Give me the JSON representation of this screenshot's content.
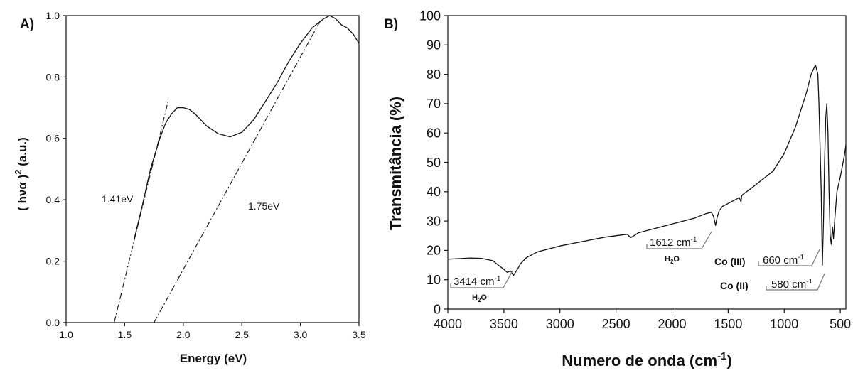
{
  "chart_data": [
    {
      "panel_label": "A)",
      "type": "line",
      "title": "",
      "xlabel": "Energy (eV)",
      "ylabel_base": "( hνα )",
      "ylabel_exp": "2",
      "ylabel_unit": " (a.u.)",
      "xlim": [
        1.0,
        3.5
      ],
      "ylim": [
        0.0,
        1.0
      ],
      "xticks": [
        1.0,
        1.5,
        2.0,
        2.5,
        3.0,
        3.5
      ],
      "xtick_labels": [
        "1.0",
        "1.5",
        "2.0",
        "2.5",
        "3.0",
        "3.5"
      ],
      "yticks": [
        0.0,
        0.2,
        0.4,
        0.6,
        0.8,
        1.0
      ],
      "ytick_labels": [
        "0.0",
        "0.2",
        "0.4",
        "0.6",
        "0.8",
        "1.0"
      ],
      "grid": false,
      "series": [
        {
          "style": "solid",
          "x": [
            1.58,
            1.65,
            1.72,
            1.8,
            1.85,
            1.9,
            1.95,
            2.0,
            2.05,
            2.1,
            2.2,
            2.3,
            2.4,
            2.5,
            2.6,
            2.7,
            2.8,
            2.9,
            3.0,
            3.1,
            3.2,
            3.25,
            3.3,
            3.35,
            3.4,
            3.45,
            3.5
          ],
          "y": [
            0.27,
            0.38,
            0.5,
            0.6,
            0.65,
            0.68,
            0.7,
            0.7,
            0.695,
            0.68,
            0.64,
            0.615,
            0.605,
            0.62,
            0.66,
            0.72,
            0.78,
            0.85,
            0.91,
            0.96,
            0.99,
            1.0,
            0.99,
            0.97,
            0.96,
            0.94,
            0.91
          ]
        },
        {
          "style": "dashdot",
          "x": [
            1.41,
            1.87
          ],
          "y": [
            0.0,
            0.72
          ]
        },
        {
          "style": "dashdot",
          "x": [
            1.75,
            3.18
          ],
          "y": [
            0.0,
            0.99
          ]
        }
      ],
      "annotations": [
        "1.41eV",
        "1.75eV"
      ]
    },
    {
      "panel_label": "B)",
      "type": "line",
      "title": "",
      "xlabel_base": "Numero de onda (cm",
      "xlabel_exp": "-1",
      "xlabel_close": ")",
      "ylabel": "Transmitância (%)",
      "xlim": [
        4000,
        450
      ],
      "ylim": [
        0,
        100
      ],
      "xticks": [
        4000,
        3500,
        3000,
        2500,
        2000,
        1500,
        1000,
        500
      ],
      "xtick_labels": [
        "4000",
        "3500",
        "3000",
        "2500",
        "2000",
        "1500",
        "1000",
        "500"
      ],
      "yticks": [
        0,
        10,
        20,
        30,
        40,
        50,
        60,
        70,
        80,
        90,
        100
      ],
      "ytick_labels": [
        "0",
        "10",
        "20",
        "30",
        "40",
        "50",
        "60",
        "70",
        "80",
        "90",
        "100"
      ],
      "grid": false,
      "series": [
        {
          "x": [
            4000,
            3900,
            3800,
            3700,
            3600,
            3550,
            3500,
            3470,
            3440,
            3414,
            3380,
            3350,
            3300,
            3250,
            3200,
            3000,
            2800,
            2600,
            2400,
            2370,
            2340,
            2300,
            2200,
            2000,
            1800,
            1700,
            1650,
            1630,
            1612,
            1600,
            1580,
            1550,
            1500,
            1450,
            1400,
            1385,
            1380,
            1370,
            1300,
            1200,
            1100,
            1000,
            900,
            800,
            760,
            730,
            720,
            700,
            690,
            680,
            670,
            660,
            650,
            640,
            630,
            620,
            610,
            600,
            590,
            580,
            570,
            560,
            550,
            530,
            500,
            480,
            460,
            450
          ],
          "y": [
            17,
            17.2,
            17.4,
            17.3,
            16.5,
            15,
            13.5,
            12.5,
            13,
            11.5,
            13.5,
            15.5,
            17.5,
            18.5,
            19.5,
            21.5,
            23,
            24.5,
            25.5,
            24.3,
            25,
            26,
            27,
            29,
            31,
            32.5,
            33,
            31.5,
            28.5,
            31,
            33.5,
            35,
            36,
            37,
            38,
            36.5,
            38.5,
            39,
            41,
            44,
            47,
            53,
            62,
            74,
            80,
            82.5,
            83,
            80,
            70,
            55,
            40,
            15,
            30,
            50,
            65,
            70,
            60,
            40,
            25,
            22,
            28,
            24,
            30,
            40,
            45,
            49,
            53,
            56
          ]
        }
      ],
      "annotations": {
        "oh_wn": "3414 cm",
        "oh_exp": "-1",
        "oh_group": "H",
        "oh_sub": "2",
        "oh_tail": "O",
        "h2o_wn": "1612 cm",
        "h2o_exp": "-1",
        "h2o_group": "H",
        "h2o_sub": "2",
        "h2o_tail": "O",
        "co3_label": "Co (III)",
        "co3_wn": "660 cm",
        "co3_exp": "-1",
        "co2_label": "Co (II)",
        "co2_wn": "580 cm",
        "co2_exp": "-1"
      }
    }
  ]
}
